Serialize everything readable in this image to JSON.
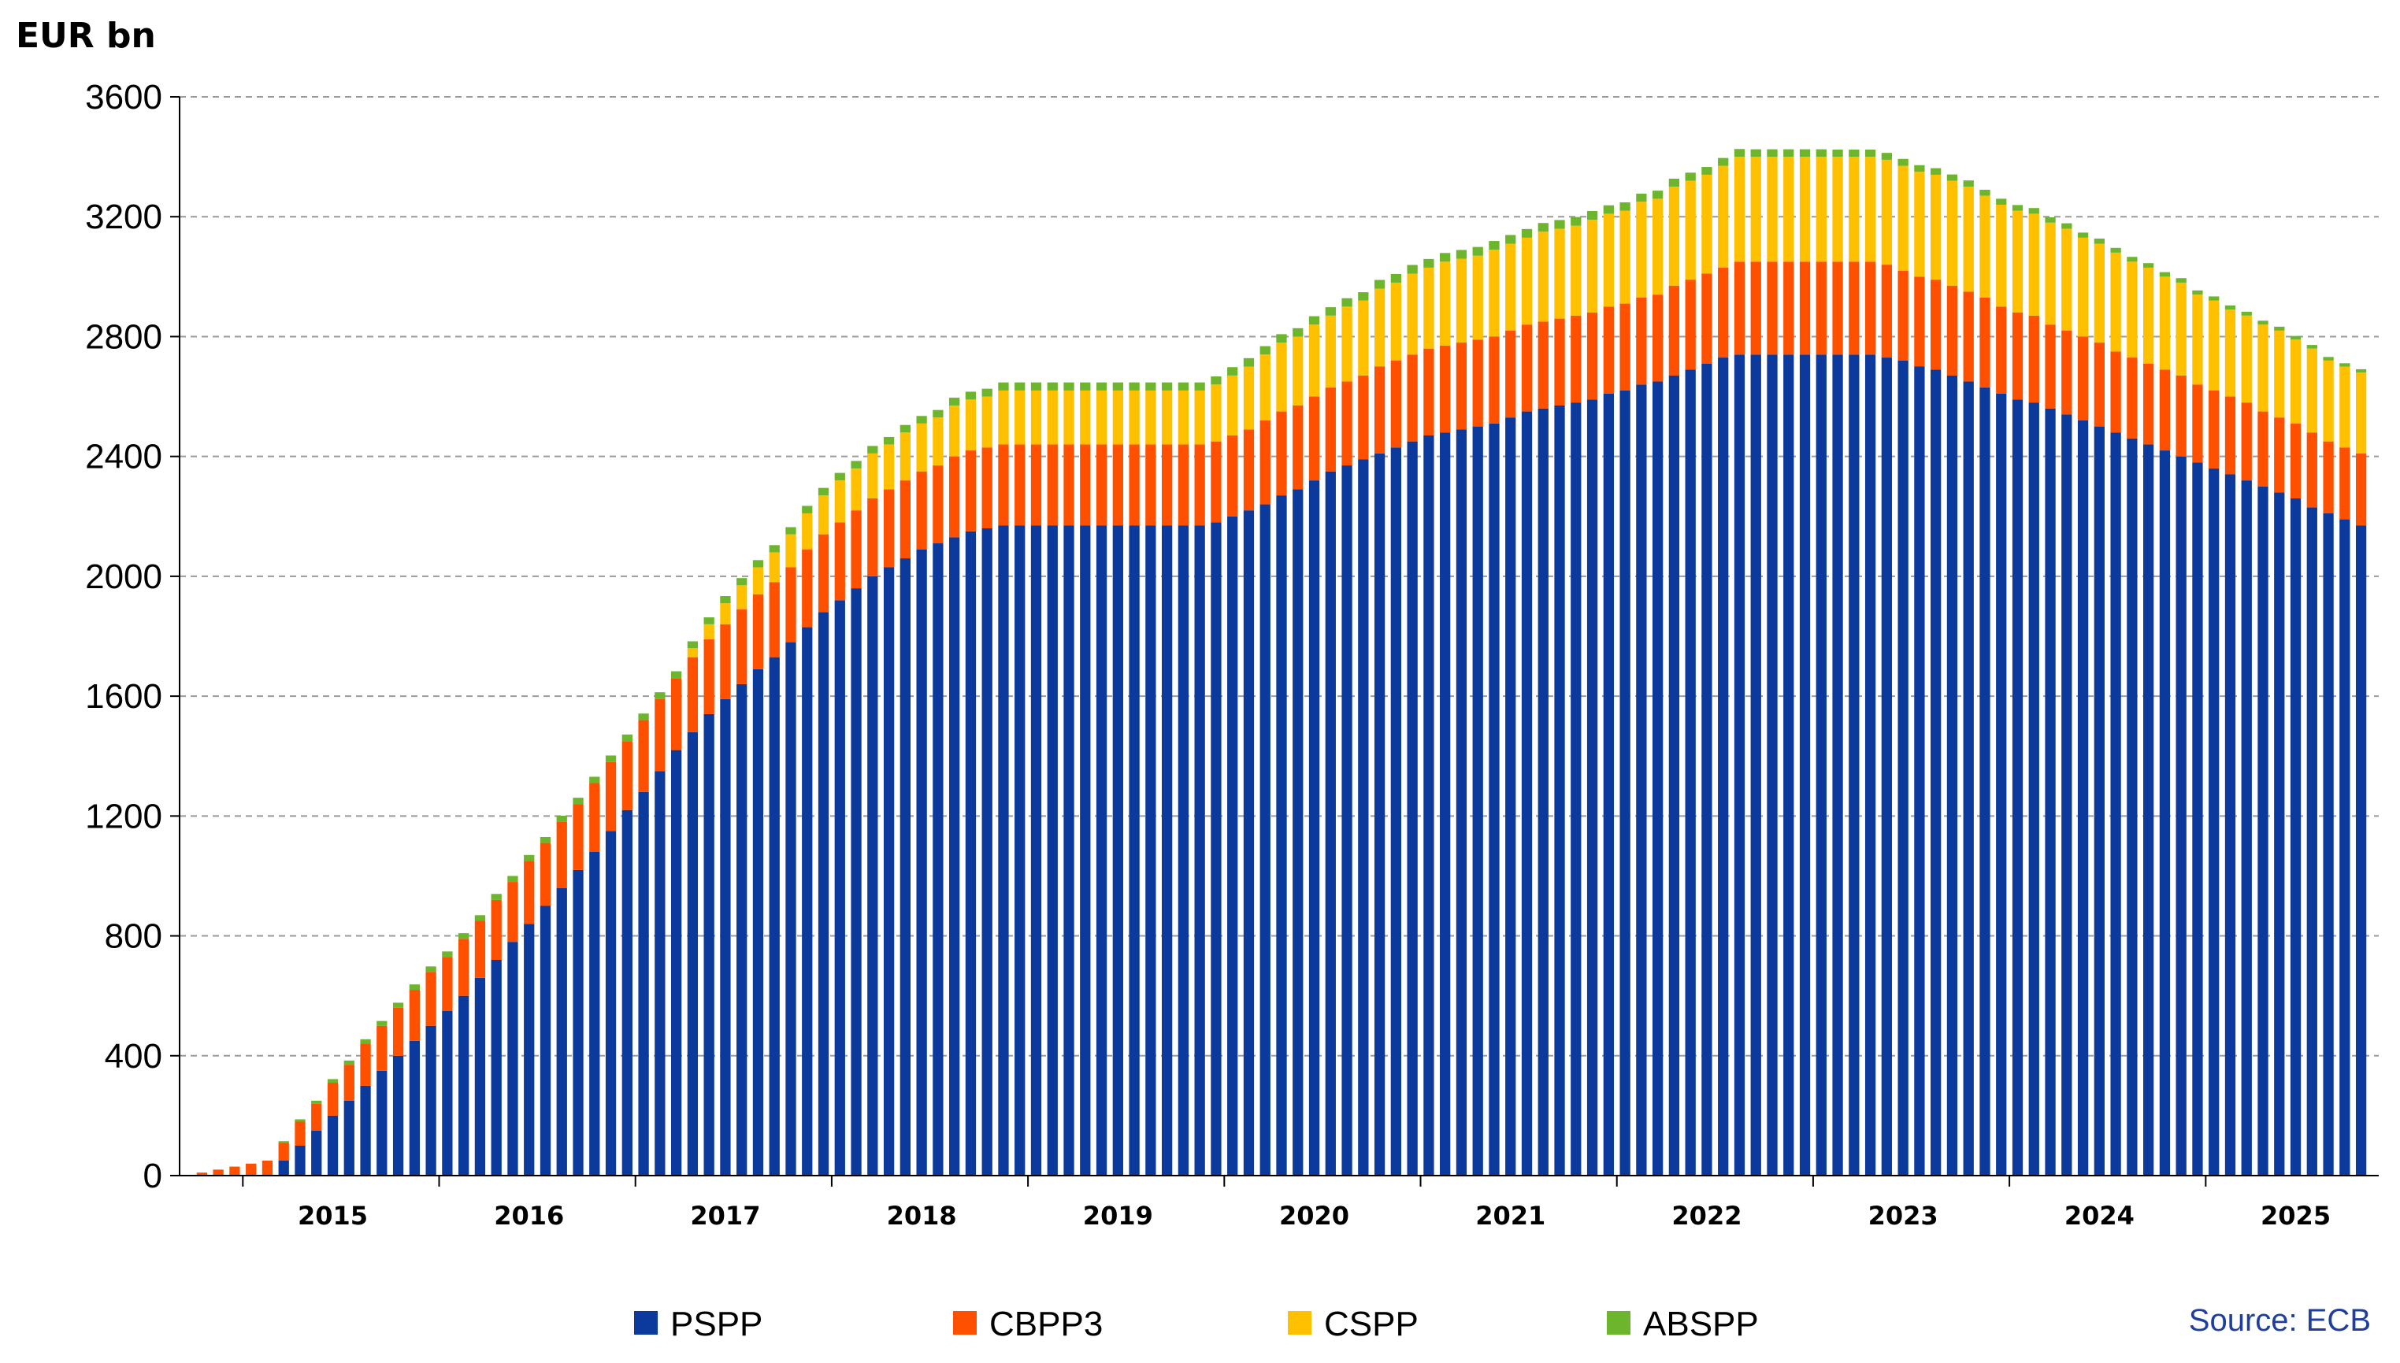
{
  "chart_data": {
    "type": "bar",
    "stacked": true,
    "unit_label": "EUR bn",
    "source": "Source: ECB",
    "ylim": [
      0,
      3600
    ],
    "y_ticks": [
      0,
      400,
      800,
      1200,
      1600,
      2000,
      2400,
      2800,
      3200,
      3600
    ],
    "grid": true,
    "legend_position": "bottom",
    "year_labels": [
      "2015",
      "2016",
      "2017",
      "2018",
      "2019",
      "2020",
      "2021",
      "2022",
      "2023",
      "2024",
      "2025"
    ],
    "period": {
      "start": "2014-10",
      "end": "2025-06",
      "frequency": "monthly"
    },
    "series": [
      {
        "name": "PSPP",
        "color": "#0B3A9C",
        "values": [
          0,
          0,
          0,
          0,
          0,
          50,
          100,
          150,
          200,
          250,
          300,
          350,
          400,
          450,
          500,
          550,
          600,
          660,
          720,
          780,
          840,
          900,
          960,
          1020,
          1080,
          1150,
          1220,
          1280,
          1350,
          1420,
          1480,
          1540,
          1590,
          1640,
          1690,
          1730,
          1780,
          1830,
          1880,
          1920,
          1960,
          2000,
          2030,
          2060,
          2090,
          2110,
          2130,
          2150,
          2160,
          2170,
          2170,
          2170,
          2170,
          2170,
          2170,
          2170,
          2170,
          2170,
          2170,
          2170,
          2170,
          2170,
          2180,
          2200,
          2220,
          2240,
          2270,
          2290,
          2320,
          2350,
          2370,
          2390,
          2410,
          2430,
          2450,
          2470,
          2480,
          2490,
          2500,
          2510,
          2530,
          2550,
          2560,
          2570,
          2580,
          2590,
          2610,
          2620,
          2640,
          2650,
          2670,
          2690,
          2710,
          2730,
          2740,
          2740,
          2740,
          2740,
          2740,
          2740,
          2740,
          2740,
          2740,
          2730,
          2720,
          2700,
          2690,
          2670,
          2650,
          2630,
          2610,
          2590,
          2580,
          2560,
          2540,
          2520,
          2500,
          2480,
          2460,
          2440,
          2420,
          2400,
          2380,
          2360,
          2340,
          2320,
          2300,
          2280,
          2260,
          2230,
          2210,
          2190,
          2170
        ]
      },
      {
        "name": "CBPP3",
        "color": "#FF5000",
        "values": [
          10,
          20,
          30,
          40,
          50,
          60,
          80,
          90,
          110,
          120,
          140,
          150,
          160,
          170,
          180,
          180,
          190,
          190,
          200,
          200,
          210,
          210,
          220,
          220,
          230,
          230,
          230,
          240,
          240,
          240,
          250,
          250,
          250,
          250,
          250,
          250,
          250,
          260,
          260,
          260,
          260,
          260,
          260,
          260,
          260,
          260,
          270,
          270,
          270,
          270,
          270,
          270,
          270,
          270,
          270,
          270,
          270,
          270,
          270,
          270,
          270,
          270,
          270,
          270,
          270,
          280,
          280,
          280,
          280,
          280,
          280,
          280,
          290,
          290,
          290,
          290,
          290,
          290,
          290,
          290,
          290,
          290,
          290,
          290,
          290,
          290,
          290,
          290,
          290,
          290,
          300,
          300,
          300,
          300,
          310,
          310,
          310,
          310,
          310,
          310,
          310,
          310,
          310,
          310,
          300,
          300,
          300,
          300,
          300,
          300,
          290,
          290,
          290,
          280,
          280,
          280,
          280,
          270,
          270,
          270,
          270,
          270,
          260,
          260,
          260,
          260,
          250,
          250,
          250,
          250,
          240,
          240,
          240,
          240
        ]
      },
      {
        "name": "CSPP",
        "color": "#FFC000",
        "values": [
          0,
          0,
          0,
          0,
          0,
          0,
          0,
          0,
          0,
          0,
          0,
          0,
          0,
          0,
          0,
          0,
          0,
          0,
          0,
          0,
          0,
          0,
          0,
          0,
          0,
          0,
          0,
          0,
          0,
          0,
          30,
          50,
          70,
          80,
          90,
          100,
          110,
          120,
          130,
          140,
          140,
          150,
          150,
          160,
          160,
          160,
          170,
          170,
          170,
          180,
          180,
          180,
          180,
          180,
          180,
          180,
          180,
          180,
          180,
          180,
          180,
          180,
          190,
          200,
          210,
          220,
          230,
          230,
          240,
          240,
          250,
          250,
          260,
          260,
          270,
          270,
          280,
          280,
          280,
          290,
          290,
          290,
          300,
          300,
          300,
          310,
          310,
          310,
          320,
          320,
          330,
          330,
          330,
          340,
          350,
          350,
          350,
          350,
          350,
          350,
          350,
          350,
          350,
          350,
          350,
          350,
          350,
          350,
          350,
          340,
          340,
          340,
          340,
          340,
          340,
          330,
          330,
          330,
          320,
          320,
          310,
          310,
          300,
          300,
          290,
          290,
          290,
          290,
          280,
          280,
          270,
          270,
          270,
          260
        ]
      },
      {
        "name": "ABSPP",
        "color": "#6CB52D",
        "values": [
          0,
          0,
          0,
          0,
          0,
          5,
          8,
          10,
          12,
          14,
          15,
          16,
          17,
          18,
          18,
          18,
          19,
          19,
          20,
          20,
          20,
          20,
          21,
          21,
          21,
          22,
          22,
          22,
          23,
          23,
          23,
          23,
          24,
          24,
          24,
          24,
          24,
          25,
          25,
          25,
          25,
          25,
          25,
          25,
          25,
          25,
          26,
          26,
          26,
          27,
          27,
          27,
          27,
          27,
          27,
          27,
          27,
          27,
          27,
          27,
          27,
          27,
          27,
          28,
          28,
          28,
          28,
          28,
          28,
          28,
          28,
          28,
          29,
          29,
          29,
          29,
          29,
          29,
          29,
          29,
          29,
          29,
          29,
          29,
          29,
          29,
          28,
          28,
          27,
          27,
          27,
          27,
          26,
          26,
          26,
          25,
          25,
          25,
          25,
          25,
          24,
          24,
          24,
          23,
          23,
          22,
          22,
          21,
          21,
          20,
          20,
          19,
          19,
          18,
          18,
          17,
          17,
          16,
          16,
          15,
          15,
          15,
          14,
          14,
          14,
          13,
          13,
          13,
          12,
          12,
          12,
          11,
          11,
          11
        ]
      }
    ]
  }
}
